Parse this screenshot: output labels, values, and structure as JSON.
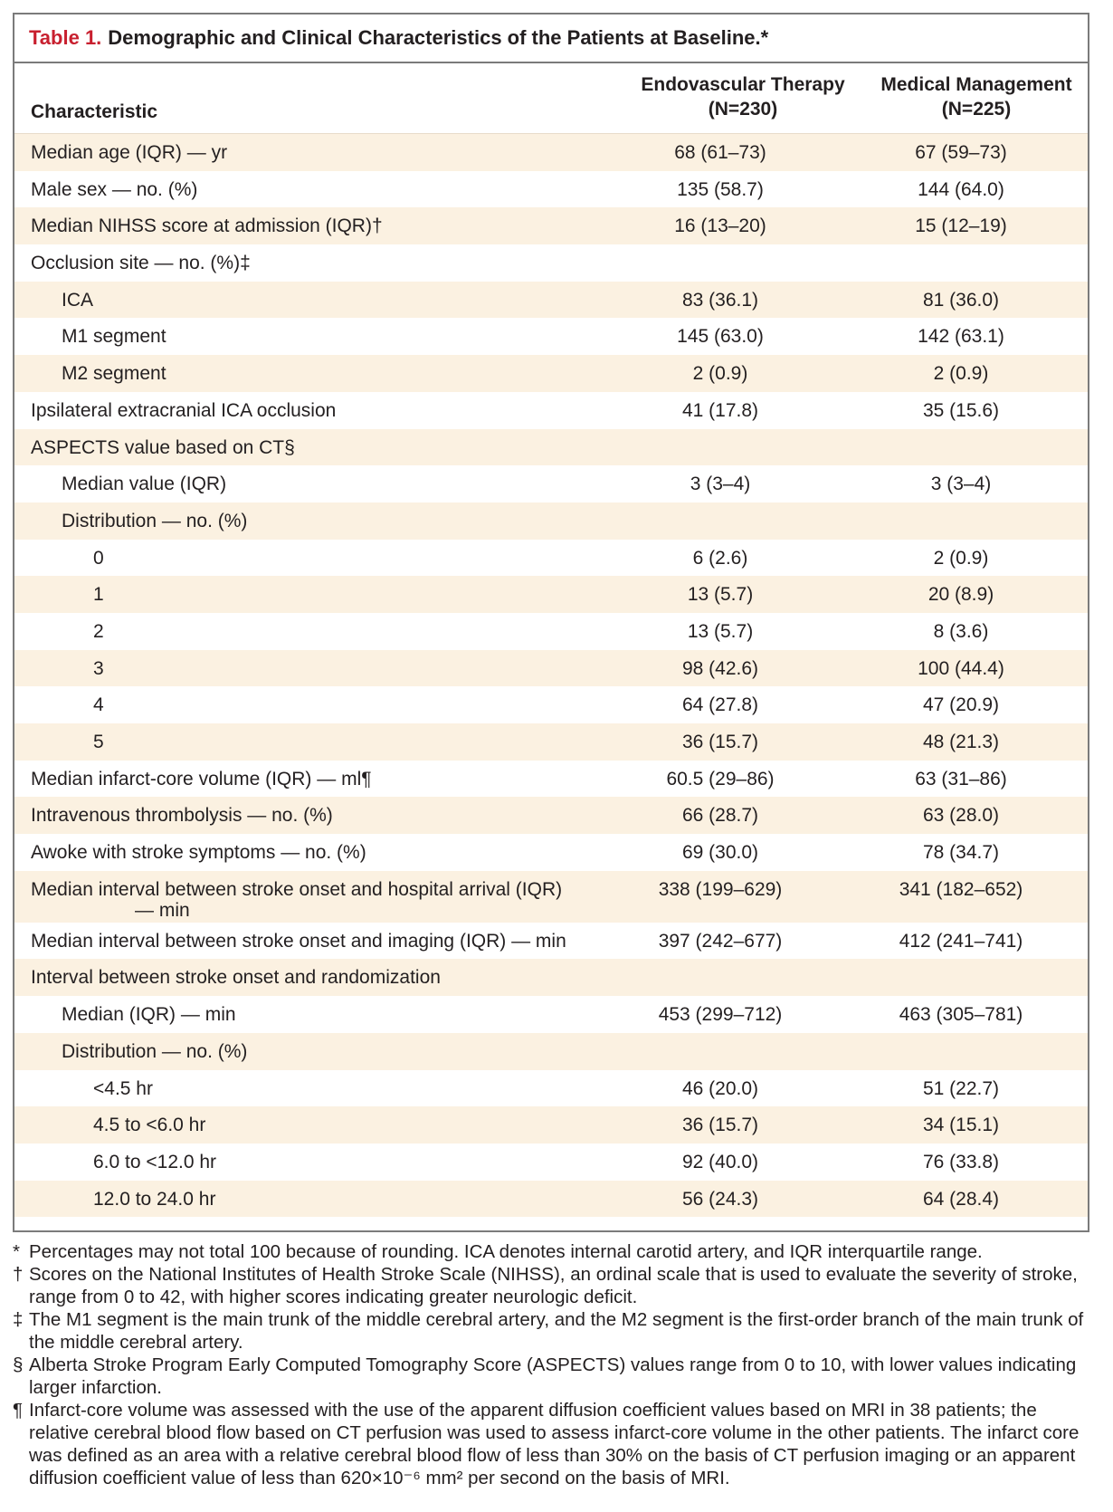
{
  "table": {
    "label": "Table 1.",
    "title": "Demographic and Clinical Characteristics of the Patients at Baseline.*",
    "col_headers": {
      "characteristic": "Characteristic",
      "group1_line1": "Endovascular Therapy",
      "group1_line2": "(N=230)",
      "group2_line1": "Medical Management",
      "group2_line2": "(N=225)"
    },
    "rows": [
      {
        "label": "Median age (IQR) — yr",
        "v1": "68 (61–73)",
        "v2": "67 (59–73)"
      },
      {
        "label": "Male sex — no. (%)",
        "v1": "135 (58.7)",
        "v2": "144 (64.0)"
      },
      {
        "label": "Median NIHSS score at admission (IQR)†",
        "v1": "16 (13–20)",
        "v2": "15 (12–19)"
      },
      {
        "label": "Occlusion site — no. (%)‡",
        "v1": "",
        "v2": ""
      },
      {
        "label": "ICA",
        "v1": "83 (36.1)",
        "v2": "81 (36.0)"
      },
      {
        "label": "M1 segment",
        "v1": "145 (63.0)",
        "v2": "142 (63.1)"
      },
      {
        "label": "M2 segment",
        "v1": "2 (0.9)",
        "v2": "2 (0.9)"
      },
      {
        "label": "Ipsilateral extracranial ICA occlusion",
        "v1": "41 (17.8)",
        "v2": "35 (15.6)"
      },
      {
        "label": "ASPECTS value based on CT§",
        "v1": "",
        "v2": ""
      },
      {
        "label": "Median value (IQR)",
        "v1": "3 (3–4)",
        "v2": "3 (3–4)"
      },
      {
        "label": "Distribution — no. (%)",
        "v1": "",
        "v2": ""
      },
      {
        "label": "0",
        "v1": "6 (2.6)",
        "v2": "2 (0.9)"
      },
      {
        "label": "1",
        "v1": "13 (5.7)",
        "v2": "20 (8.9)"
      },
      {
        "label": "2",
        "v1": "13 (5.7)",
        "v2": "8 (3.6)"
      },
      {
        "label": "3",
        "v1": "98 (42.6)",
        "v2": "100 (44.4)"
      },
      {
        "label": "4",
        "v1": "64 (27.8)",
        "v2": "47 (20.9)"
      },
      {
        "label": "5",
        "v1": "36 (15.7)",
        "v2": "48 (21.3)"
      },
      {
        "label": "Median infarct-core volume (IQR) — ml¶",
        "v1": "60.5 (29–86)",
        "v2": "63 (31–86)"
      },
      {
        "label": "Intravenous thrombolysis — no. (%)",
        "v1": "66 (28.7)",
        "v2": "63 (28.0)"
      },
      {
        "label": "Awoke with stroke symptoms — no. (%)",
        "v1": "69 (30.0)",
        "v2": "78 (34.7)"
      },
      {
        "label": "Median interval between stroke onset and hospital arrival (IQR)",
        "label_cont": "— min",
        "v1": "338 (199–629)",
        "v2": "341 (182–652)"
      },
      {
        "label": "Median interval between stroke onset and imaging (IQR) — min",
        "v1": "397 (242–677)",
        "v2": "412 (241–741)"
      },
      {
        "label": "Interval between stroke onset and randomization",
        "v1": "",
        "v2": ""
      },
      {
        "label": "Median (IQR) — min",
        "v1": "453 (299–712)",
        "v2": "463 (305–781)"
      },
      {
        "label": "Distribution — no. (%)",
        "v1": "",
        "v2": ""
      },
      {
        "label": "<4.5 hr",
        "v1": "46 (20.0)",
        "v2": "51 (22.7)"
      },
      {
        "label": "4.5 to <6.0 hr",
        "v1": "36 (15.7)",
        "v2": "34 (15.1)"
      },
      {
        "label": "6.0 to <12.0 hr",
        "v1": "92 (40.0)",
        "v2": "76 (33.8)"
      },
      {
        "label": "12.0 to 24.0 hr",
        "v1": "56 (24.3)",
        "v2": "64 (28.4)"
      }
    ]
  },
  "footnotes": [
    {
      "symbol": "*",
      "text": "Percentages may not total 100 because of rounding. ICA denotes internal carotid artery, and IQR interquartile range."
    },
    {
      "symbol": "†",
      "text": "Scores on the National Institutes of Health Stroke Scale (NIHSS), an ordinal scale that is used to evaluate the severity of stroke, range from 0 to 42, with higher scores indicating greater neurologic deficit."
    },
    {
      "symbol": "‡",
      "text": "The M1 segment is the main trunk of the middle cerebral artery, and the M2 segment is the first-order branch of the main trunk of the middle cerebral artery."
    },
    {
      "symbol": "§",
      "text": "Alberta Stroke Program Early Computed Tomography Score (ASPECTS) values range from 0 to 10, with lower values indicating larger infarction."
    },
    {
      "symbol": "¶",
      "text": "Infarct-core volume was assessed with the use of the apparent diffusion coefficient values based on MRI in 38 patients; the relative cerebral blood flow based on CT perfusion was used to assess infarct-core volume in the other patients. The infarct core was defined as an area with a relative cerebral blood flow of less than 30% on the basis of CT perfusion imaging or an apparent diffusion coefficient value of less than 620×10⁻⁶ mm² per second on the basis of MRI."
    }
  ],
  "colors": {
    "title_label": "#c8202f",
    "row_shade": "#fbf1e1",
    "border": "#7b7b7b"
  }
}
